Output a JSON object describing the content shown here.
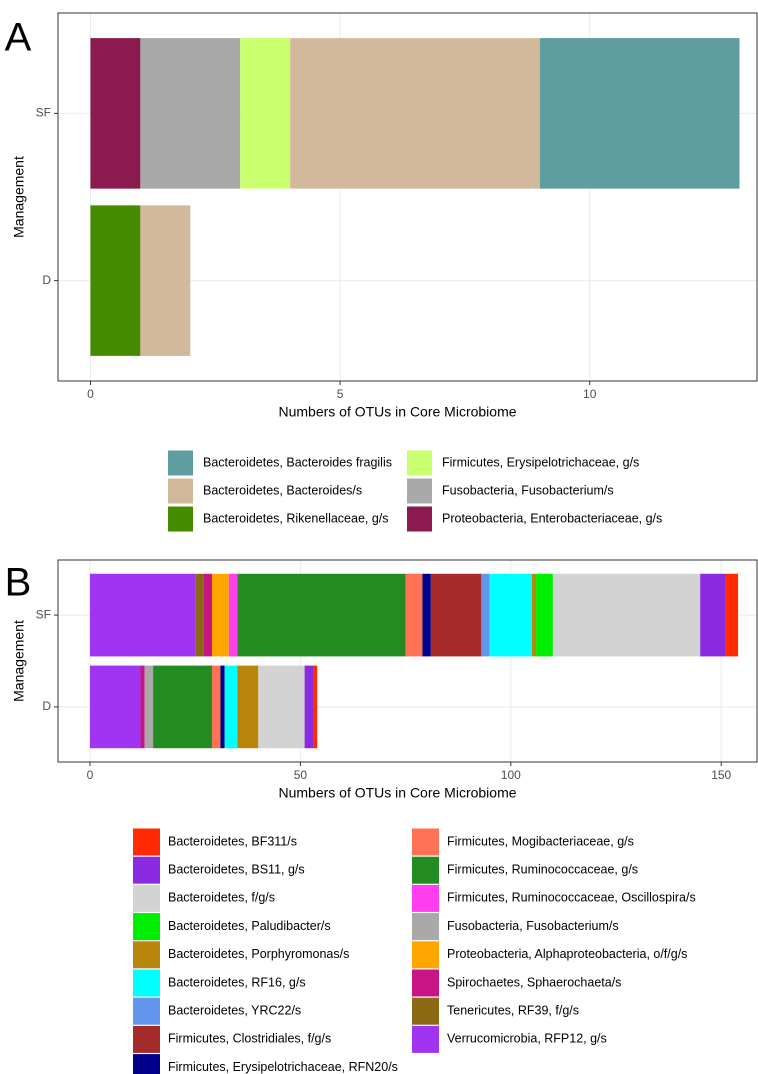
{
  "chart_data": [
    {
      "type": "bar",
      "orientation": "horizontal",
      "stacked": true,
      "panel_label": "A",
      "x_label": "Numbers of OTUs in Core Microbiome",
      "y_label": "Management",
      "categories": [
        "SF",
        "D"
      ],
      "series": [
        {
          "name": "Bacteroidetes, Bacteroides fragilis",
          "color": "#5f9ea0",
          "values": [
            4,
            null
          ]
        },
        {
          "name": "Bacteroidetes, Bacteroides/s",
          "color": "#d2b99c",
          "values": [
            5,
            1
          ]
        },
        {
          "name": "Bacteroidetes, Rikenellaceae, g/s",
          "color": "#458b00",
          "values": [
            null,
            1
          ]
        },
        {
          "name": "Firmicutes, Erysipelotrichaceae, g/s",
          "color": "#caff70",
          "values": [
            1,
            null
          ]
        },
        {
          "name": "Fusobacteria, Fusobacterium/s",
          "color": "#a9a9a9",
          "values": [
            2,
            null
          ]
        },
        {
          "name": "Proteobacteria, Enterobacteriaceae, g/s",
          "color": "#8b1a4f",
          "values": [
            1,
            null
          ]
        }
      ],
      "xlim": [
        -0.65,
        13.35
      ],
      "xticks": [
        0,
        5,
        10
      ],
      "grid": true
    },
    {
      "type": "bar",
      "orientation": "horizontal",
      "stacked": true,
      "panel_label": "B",
      "x_label": "Numbers of OTUs in Core Microbiome",
      "y_label": "Management",
      "categories": [
        "SF",
        "D"
      ],
      "series": [
        {
          "name": "Bacteroidetes, BF311/s",
          "color": "#ff2a00",
          "values": [
            3,
            1
          ]
        },
        {
          "name": "Bacteroidetes, BS11, g/s",
          "color": "#8a2be2",
          "values": [
            6,
            2
          ]
        },
        {
          "name": "Bacteroidetes, f/g/s",
          "color": "#d3d3d3",
          "values": [
            35,
            11
          ]
        },
        {
          "name": "Bacteroidetes, Paludibacter/s",
          "color": "#00ee00",
          "values": [
            4,
            null
          ]
        },
        {
          "name": "Bacteroidetes, Porphyromonas/s",
          "color": "#b8860b",
          "values": [
            1,
            5
          ]
        },
        {
          "name": "Bacteroidetes, RF16, g/s",
          "color": "#00ffff",
          "values": [
            10,
            3
          ]
        },
        {
          "name": "Bacteroidetes, YRC22/s",
          "color": "#6495ed",
          "values": [
            2,
            null
          ]
        },
        {
          "name": "Firmicutes, Clostridiales, f/g/s",
          "color": "#a52a2a",
          "values": [
            12,
            null
          ]
        },
        {
          "name": "Firmicutes, Erysipelotrichaceae, RFN20/s",
          "color": "#00008b",
          "values": [
            2,
            1
          ]
        },
        {
          "name": "Firmicutes, Mogibacteriaceae, g/s",
          "color": "#ff7256",
          "values": [
            4,
            2
          ]
        },
        {
          "name": "Firmicutes, Ruminococcaceae, g/s",
          "color": "#228b22",
          "values": [
            40,
            14
          ]
        },
        {
          "name": "Firmicutes, Ruminococcaceae, Oscillospira/s",
          "color": "#ff3ef0",
          "values": [
            2,
            null
          ]
        },
        {
          "name": "Fusobacteria, Fusobacterium/s",
          "color": "#a9a9a9",
          "values": [
            null,
            2
          ]
        },
        {
          "name": "Proteobacteria, Alphaproteobacteria, o/f/g/s",
          "color": "#ffa500",
          "values": [
            4,
            null
          ]
        },
        {
          "name": "Spirochaetes, Sphaerochaeta/s",
          "color": "#c71585",
          "values": [
            2,
            1
          ]
        },
        {
          "name": "Tenericutes, RF39, f/g/s",
          "color": "#8b6914",
          "values": [
            2,
            null
          ]
        },
        {
          "name": "Verrucomicrobia, RFP12, g/s",
          "color": "#a034f0",
          "values": [
            25,
            12
          ]
        }
      ],
      "xlim": [
        -7.6,
        158.5
      ],
      "xticks": [
        0,
        50,
        100,
        150
      ],
      "grid": true
    }
  ]
}
